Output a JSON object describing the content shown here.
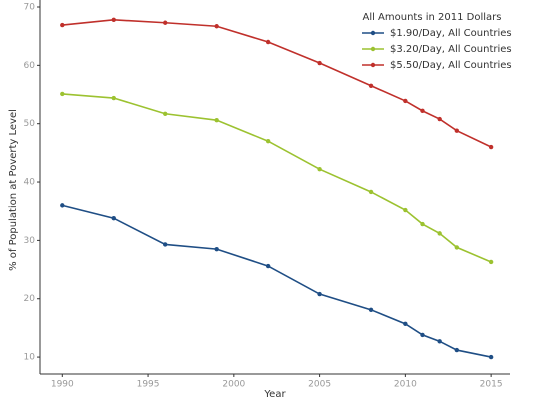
{
  "chart_data": {
    "type": "line",
    "x_label": "Year",
    "y_label": "% of Population at Poverty Level",
    "legend_title": "All Amounts in 2011 Dollars",
    "legend_position": "upper right",
    "x": [
      1990,
      1993,
      1996,
      1999,
      2002,
      2005,
      2008,
      2010,
      2011,
      2012,
      2013,
      2015
    ],
    "series": [
      {
        "name": "$1.90/Day, All Countries",
        "color": "#1f4e85",
        "values": [
          36.0,
          33.8,
          29.3,
          28.5,
          25.6,
          20.8,
          18.1,
          15.7,
          13.8,
          12.7,
          11.2,
          10.0
        ]
      },
      {
        "name": "$3.20/Day, All Countries",
        "color": "#9cc230",
        "values": [
          55.1,
          54.4,
          51.7,
          50.6,
          47.0,
          42.2,
          38.3,
          35.2,
          32.8,
          31.2,
          28.8,
          26.3
        ]
      },
      {
        "name": "$5.50/Day, All Countries",
        "color": "#c0302b",
        "values": [
          66.9,
          67.8,
          67.3,
          66.7,
          64.0,
          60.4,
          56.5,
          53.9,
          52.2,
          50.8,
          48.8,
          46.0
        ]
      }
    ],
    "xlim": [
      1988.7,
      2016.1
    ],
    "xticks": [
      1990,
      1995,
      2000,
      2005,
      2010,
      2015
    ],
    "ylim": [
      7.1,
      71.2
    ],
    "yticks": [
      10,
      20,
      30,
      40,
      50,
      60,
      70
    ],
    "grid": false
  }
}
